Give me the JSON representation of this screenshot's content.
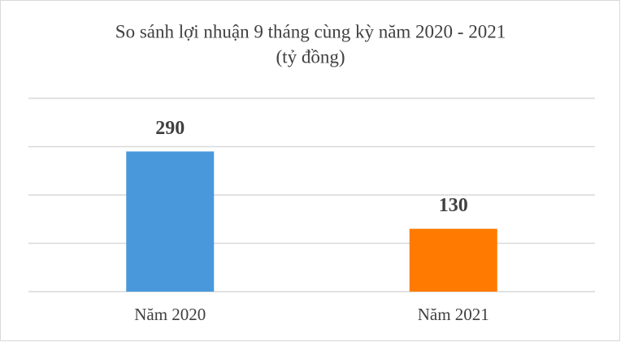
{
  "chart_data": {
    "type": "bar",
    "title": "So sánh lợi nhuận 9 tháng cùng kỳ năm 2020 - 2021",
    "subtitle": "(tỷ đồng)",
    "categories": [
      "Năm 2020",
      "Năm 2021"
    ],
    "values": [
      290,
      130
    ],
    "colors": [
      "#4a98dc",
      "#ff7a00"
    ],
    "ylim": [
      0,
      400
    ],
    "yticks": [
      0,
      100,
      200,
      300,
      400
    ],
    "grid": true
  }
}
